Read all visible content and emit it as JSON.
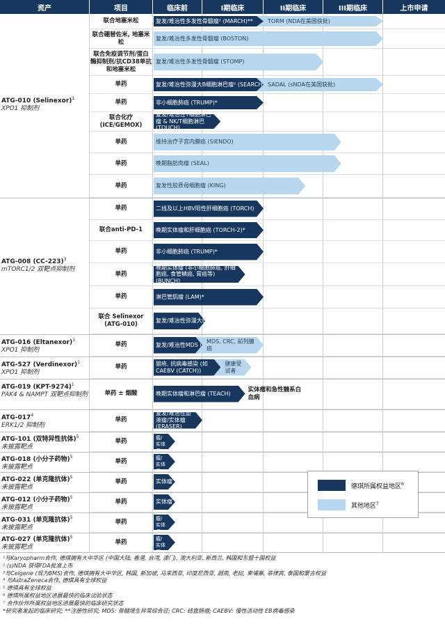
{
  "headers": {
    "asset": "资产",
    "project": "项目",
    "stages": [
      "临床前",
      "I期临床",
      "II期临床",
      "III期临床",
      "上市申请"
    ]
  },
  "colors": {
    "dark": "#17375e",
    "light": "#b8d7ee"
  },
  "legend": {
    "dark_label": "德琪所属权益地区",
    "dark_sup": "6",
    "light_label": "其他地区",
    "light_sup": "7"
  },
  "assets": [
    {
      "name": "ATG-010 (Selinexor)",
      "sup": "1",
      "target": "XPO1 抑制剂"
    },
    {
      "name": "ATG-008 (CC-223)",
      "sup": "3",
      "target": "mTORC1/2 双靶点抑制剂"
    },
    {
      "name": "ATG-016 (Eltanexor)",
      "sup": "1",
      "target": "XPO1 抑制剂"
    },
    {
      "name": "ATG-527 (Verdinexor)",
      "sup": "1",
      "target": "XPO1 抑制剂"
    },
    {
      "name": "ATG-019 (KPT-9274)",
      "sup": "1",
      "target": "PAK4 & NAMPT 双靶点抑制剂"
    },
    {
      "name": "ATG-017",
      "sup": "4",
      "target": "ERK1/2 抑制剂"
    },
    {
      "name": "ATG-101 (双特异性抗体)",
      "sup": "5",
      "target": "未披露靶点"
    },
    {
      "name": "ATG-018 (小分子药物)",
      "sup": "5",
      "target": "未披露靶点"
    },
    {
      "name": "ATG-022 (单克隆抗体)",
      "sup": "5",
      "target": "未披露靶点"
    },
    {
      "name": "ATG-012 (小分子药物)",
      "sup": "5",
      "target": "未披露靶点"
    },
    {
      "name": "ATG-031 (单克隆抗体)",
      "sup": "5",
      "target": "未披露靶点"
    },
    {
      "name": "ATG-027 (单克隆抗体)",
      "sup": "5",
      "target": "未披露靶点"
    }
  ],
  "rows": [
    {
      "project": "联合地塞米松",
      "dark_label": "复发/难治性多发性骨髓瘤² (MARCH)**",
      "dark_end": 2.0,
      "light_label": "TORM (NDA在美国获批)",
      "light_end": 4.0,
      "extra": ""
    },
    {
      "project": "联合硼替佐米, 地塞米松",
      "dark_label": "",
      "dark_end": 0,
      "light_label": "复发/难治性多发性骨髓瘤 (BOSTON)",
      "light_end": 4.0,
      "extra": ""
    },
    {
      "project": "联合免疫调节剂/蛋白酶抑制剂/抗CD38单抗和地塞米松",
      "dark_label": "",
      "dark_end": 0,
      "light_label": "复发/难治性多发性骨髓瘤 (STOMP)",
      "light_end": 3.0,
      "extra": ""
    },
    {
      "project": "单药",
      "dark_label": "复发/难治性弥漫大B细胞淋巴瘤² (SEARCH)**",
      "dark_end": 2.0,
      "light_label": "SADAL (sNDA在美国获批)",
      "light_end": 4.0,
      "extra": ""
    },
    {
      "project": "单药",
      "dark_label": "非小细胞肺癌 (TRUMP)*",
      "dark_end": 2.0,
      "light_label": "",
      "light_end": 0,
      "extra": ""
    },
    {
      "project": "联合化疗 (ICE/GEMOX)",
      "dark_label": "复发/难治性T细胞淋巴瘤 & NK/T细胞淋巴 (TOUCH)",
      "dark_end": 1.3,
      "light_label": "",
      "light_end": 0,
      "extra": ""
    },
    {
      "project": "单药",
      "dark_label": "",
      "dark_end": 0,
      "light_label": "维持治疗子宫内膜癌 (SIENDO)",
      "light_end": 3.3,
      "extra": ""
    },
    {
      "project": "单药",
      "dark_label": "",
      "dark_end": 0,
      "light_label": "晚期脂肪肉瘤 (SEAL)",
      "light_end": 3.3,
      "extra": ""
    },
    {
      "project": "单药",
      "dark_label": "",
      "dark_end": 0,
      "light_label": "复发性胶质母细胞瘤 (KING)",
      "light_end": 2.7,
      "extra": ""
    },
    {
      "project": "单药",
      "dark_label": "二线及以上HBV阳性肝细胞癌 (TORCH)",
      "dark_end": 2.0,
      "light_label": "",
      "light_end": 0,
      "extra": ""
    },
    {
      "project": "联合anti-PD-1",
      "dark_label": "晚期实体瘤和肝细胞癌 (TORCH-2)*",
      "dark_end": 2.0,
      "light_label": "",
      "light_end": 0,
      "extra": ""
    },
    {
      "project": "单药",
      "dark_label": "非小细胞肺癌 (TRUMP)*",
      "dark_end": 2.0,
      "light_label": "",
      "light_end": 0,
      "extra": ""
    },
    {
      "project": "单药",
      "dark_label": "晚期实体瘤 (非小细胞肺癌, 肝细胞癌, 食管鳞癌, 胃癌等) (BUNCH)",
      "dark_end": 1.7,
      "light_label": "",
      "light_end": 0,
      "extra": ""
    },
    {
      "project": "单药",
      "dark_label": "淋巴管肌瘤 (LAM)*",
      "dark_end": 2.0,
      "light_label": "",
      "light_end": 0,
      "extra": ""
    },
    {
      "project": "联合 Selinexor (ATG-010)",
      "dark_label": "复发/难治性弥漫大B细胞淋巴瘤 (MATCH)",
      "dark_end": 1.05,
      "light_label": "",
      "light_end": 0,
      "extra": ""
    },
    {
      "project": "单药",
      "dark_label": "复发/难治性MDS (HATCH)",
      "dark_end": 1.0,
      "light_label": "MDS, CRC, 前列腺癌",
      "light_end": 2.0,
      "extra": ""
    },
    {
      "project": "单药",
      "dark_label": "狼疮, 抗病毒感染 (如CAEBV (CATCH))",
      "dark_end": 1.3,
      "light_label": "健康受试者",
      "light_end": 1.8,
      "extra": ""
    },
    {
      "project": "单药 ± 烟酸",
      "dark_label": "晚期实体瘤和淋巴瘤 (TEACH)",
      "dark_end": 1.7,
      "light_label": "",
      "light_end": 0,
      "extra": "实体瘤和急性髓系白血病"
    },
    {
      "project": "单药",
      "dark_label": "复发/难治性血液瘤/实体瘤 (ERASER)",
      "dark_end": 1.0,
      "light_label": "",
      "light_end": 0,
      "extra": ""
    },
    {
      "project": "单药",
      "dark_label": "血液瘤/实体瘤",
      "dark_end": 0.45,
      "light_label": "",
      "light_end": 0,
      "extra": ""
    },
    {
      "project": "单药",
      "dark_label": "血液瘤/实体瘤",
      "dark_end": 0.45,
      "light_label": "",
      "light_end": 0,
      "extra": ""
    },
    {
      "project": "单药",
      "dark_label": "实体瘤",
      "dark_end": 0.45,
      "light_label": "",
      "light_end": 0,
      "extra": ""
    },
    {
      "project": "单药",
      "dark_label": "实体瘤",
      "dark_end": 0.45,
      "light_label": "",
      "light_end": 0,
      "extra": ""
    },
    {
      "project": "单药",
      "dark_label": "血液瘤/实体瘤",
      "dark_end": 0.45,
      "light_label": "",
      "light_end": 0,
      "extra": ""
    },
    {
      "project": "单药",
      "dark_label": "血液瘤/实体瘤",
      "dark_end": 0.45,
      "light_label": "",
      "light_end": 0,
      "extra": ""
    }
  ],
  "footnotes": [
    "¹与Karyopharm合作, 德琪拥有大中华区 (中国大陆, 香港, 台湾, 澳门), 澳大利亚, 新西兰, 韩国和东盟十国权益",
    "² (s)NDA 获得FDA批准上市",
    "³与Celgene (现为BMS)合作, 德琪拥有大中华区, 韩国, 新加坡, 马来西亚, 印度尼西亚, 越南, 老挝, 柬埔寨, 菲律宾, 泰国和蒙古权益",
    "⁴ 与AstraZeneca合作, 德琪具有全球权益",
    "⁵ 德琪具有全球权益",
    "⁶ 德琪所属权益地区进展最快的临床试验状态",
    "⁷ 合作伙伴所属权益地区进展最快的临床研究状态",
    "*研究者发起的临床研究; **注册性研究; MDS: 骨髓增生异常综合征; CRC: 结直肠癌; CAEBV: 慢性活动性 EB病毒感染"
  ]
}
